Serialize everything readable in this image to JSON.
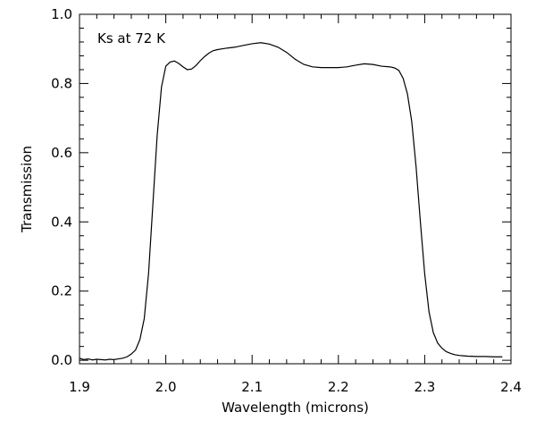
{
  "chart_data": {
    "type": "line",
    "title": "",
    "annotation": "Ks at 72 K",
    "xlabel": "Wavelength (microns)",
    "ylabel": "Transmission",
    "xlim": [
      1.9,
      2.4
    ],
    "ylim": [
      -0.01,
      1.0
    ],
    "xticks": [
      1.9,
      2.0,
      2.1,
      2.2,
      2.3,
      2.4
    ],
    "xtick_labels": [
      "1.9",
      "2.0",
      "2.1",
      "2.2",
      "2.3",
      "2.4"
    ],
    "yticks": [
      0.0,
      0.2,
      0.4,
      0.6,
      0.8,
      1.0
    ],
    "ytick_labels": [
      "0.0",
      "0.2",
      "0.4",
      "0.6",
      "0.8",
      "1.0"
    ],
    "grid": false,
    "colors": {
      "line": "#000000",
      "axes": "#000000",
      "background": "#ffffff"
    },
    "series": [
      {
        "x": [
          1.9,
          1.905,
          1.91,
          1.915,
          1.92,
          1.925,
          1.93,
          1.935,
          1.94,
          1.945,
          1.95,
          1.955,
          1.96,
          1.965,
          1.97,
          1.975,
          1.98,
          1.985,
          1.99,
          1.995,
          2.0,
          2.005,
          2.01,
          2.015,
          2.02,
          2.025,
          2.03,
          2.035,
          2.04,
          2.045,
          2.05,
          2.055,
          2.06,
          2.065,
          2.07,
          2.08,
          2.09,
          2.1,
          2.11,
          2.12,
          2.13,
          2.14,
          2.15,
          2.16,
          2.17,
          2.18,
          2.19,
          2.2,
          2.21,
          2.22,
          2.23,
          2.24,
          2.25,
          2.26,
          2.265,
          2.27,
          2.275,
          2.28,
          2.285,
          2.29,
          2.295,
          2.3,
          2.305,
          2.31,
          2.315,
          2.32,
          2.325,
          2.33,
          2.335,
          2.34,
          2.345,
          2.35,
          2.36,
          2.37,
          2.38,
          2.39
        ],
        "values": [
          0.006,
          0.002,
          0.004,
          0.001,
          0.003,
          0.002,
          0.001,
          0.003,
          0.002,
          0.004,
          0.006,
          0.01,
          0.018,
          0.03,
          0.06,
          0.12,
          0.25,
          0.45,
          0.65,
          0.79,
          0.85,
          0.862,
          0.865,
          0.858,
          0.848,
          0.84,
          0.842,
          0.852,
          0.866,
          0.878,
          0.888,
          0.895,
          0.898,
          0.9,
          0.902,
          0.905,
          0.91,
          0.915,
          0.918,
          0.914,
          0.905,
          0.89,
          0.87,
          0.855,
          0.848,
          0.846,
          0.846,
          0.846,
          0.848,
          0.853,
          0.857,
          0.855,
          0.85,
          0.848,
          0.845,
          0.838,
          0.815,
          0.77,
          0.69,
          0.56,
          0.4,
          0.25,
          0.14,
          0.08,
          0.05,
          0.035,
          0.025,
          0.02,
          0.016,
          0.014,
          0.013,
          0.012,
          0.011,
          0.011,
          0.01,
          0.01
        ]
      }
    ]
  }
}
